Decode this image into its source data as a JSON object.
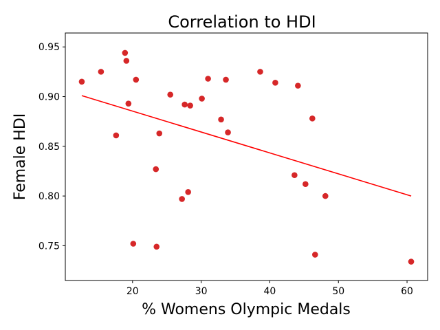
{
  "chart_data": {
    "type": "scatter",
    "title": "Correlation to HDI",
    "xlabel": "% Womens Olympic Medals",
    "ylabel": "Female HDI",
    "xlim": [
      10.2,
      63.0
    ],
    "ylim": [
      0.715,
      0.964
    ],
    "x_ticks": [
      20,
      30,
      40,
      50,
      60
    ],
    "x_tick_labels": [
      "20",
      "30",
      "40",
      "50",
      "60"
    ],
    "y_ticks": [
      0.75,
      0.8,
      0.85,
      0.9,
      0.95
    ],
    "y_tick_labels": [
      "0.75",
      "0.80",
      "0.85",
      "0.90",
      "0.95"
    ],
    "grid": false,
    "colors": {
      "points": "#d62728",
      "trend": "#ff0000",
      "axes": "#000000"
    },
    "points": [
      {
        "x": 12.6,
        "y": 0.915
      },
      {
        "x": 15.4,
        "y": 0.925
      },
      {
        "x": 17.6,
        "y": 0.861
      },
      {
        "x": 18.9,
        "y": 0.944
      },
      {
        "x": 19.1,
        "y": 0.936
      },
      {
        "x": 19.4,
        "y": 0.893
      },
      {
        "x": 20.1,
        "y": 0.752
      },
      {
        "x": 20.5,
        "y": 0.917
      },
      {
        "x": 23.4,
        "y": 0.827
      },
      {
        "x": 23.5,
        "y": 0.749
      },
      {
        "x": 23.9,
        "y": 0.863
      },
      {
        "x": 25.5,
        "y": 0.902
      },
      {
        "x": 27.2,
        "y": 0.797
      },
      {
        "x": 27.6,
        "y": 0.892
      },
      {
        "x": 28.1,
        "y": 0.804
      },
      {
        "x": 28.4,
        "y": 0.891
      },
      {
        "x": 30.1,
        "y": 0.898
      },
      {
        "x": 31.0,
        "y": 0.918
      },
      {
        "x": 32.9,
        "y": 0.877
      },
      {
        "x": 33.6,
        "y": 0.917
      },
      {
        "x": 33.9,
        "y": 0.864
      },
      {
        "x": 38.6,
        "y": 0.925
      },
      {
        "x": 40.8,
        "y": 0.914
      },
      {
        "x": 43.6,
        "y": 0.821
      },
      {
        "x": 44.1,
        "y": 0.911
      },
      {
        "x": 45.2,
        "y": 0.812
      },
      {
        "x": 46.2,
        "y": 0.878
      },
      {
        "x": 46.6,
        "y": 0.741
      },
      {
        "x": 48.1,
        "y": 0.8
      },
      {
        "x": 60.6,
        "y": 0.734
      }
    ],
    "trend_line": [
      {
        "x": 12.6,
        "y": 0.901
      },
      {
        "x": 60.6,
        "y": 0.8
      }
    ]
  }
}
